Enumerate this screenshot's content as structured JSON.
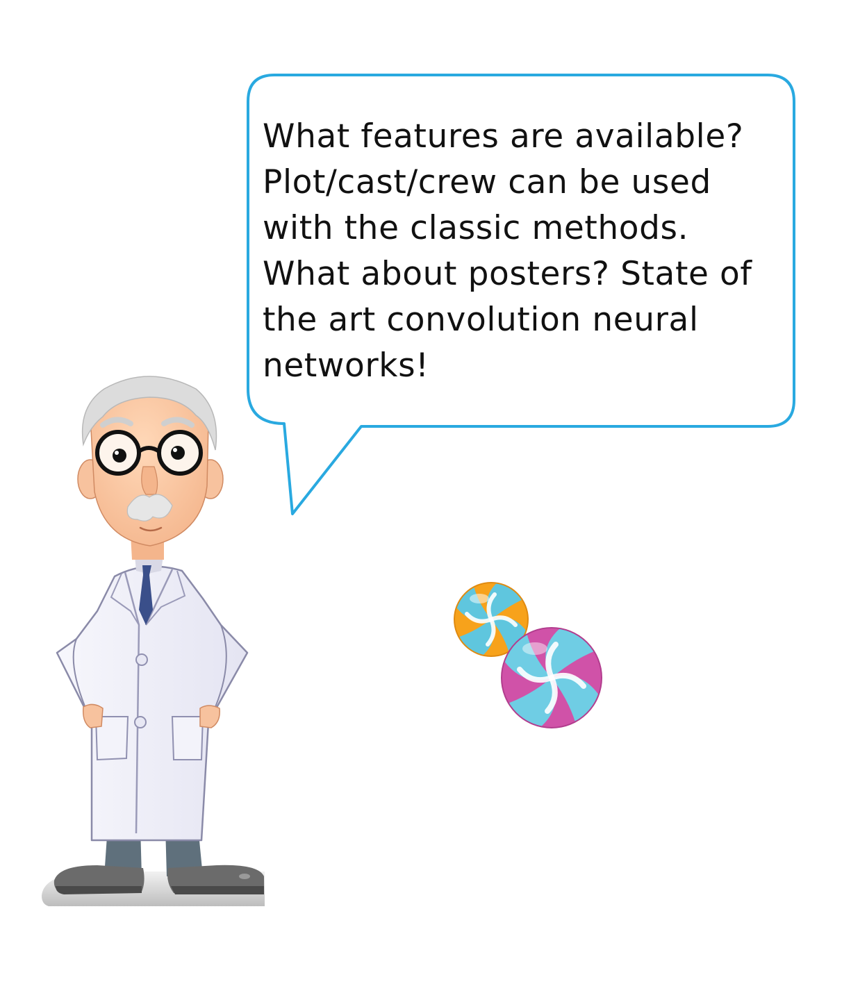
{
  "speech_bubble": {
    "text": "What features are available?\nPlot/cast/crew can be used\nwith the classic methods.\nWhat about posters? State of\nthe art convolution neural\nnetworks!",
    "border_color": "#29a9e0"
  },
  "illustration": {
    "character": "scientist",
    "objects": [
      "orange-swirl-candy-icon",
      "pink-swirl-candy-icon"
    ]
  }
}
